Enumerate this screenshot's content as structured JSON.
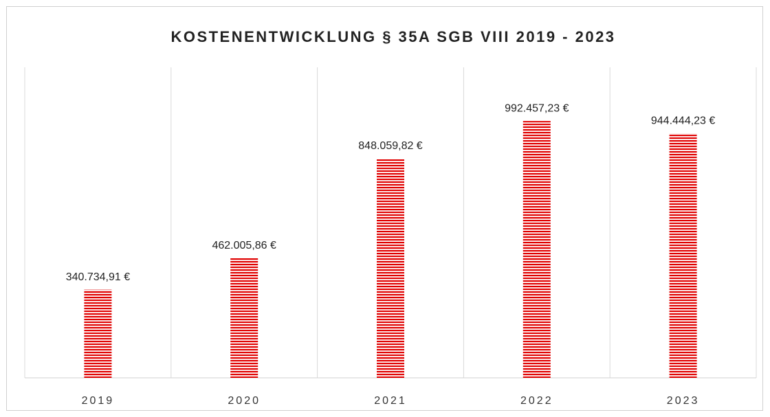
{
  "chart_data": {
    "type": "bar",
    "title": "KOSTENENTWICKLUNG § 35A SGB VIII 2019 - 2023",
    "categories": [
      "2019",
      "2020",
      "2021",
      "2022",
      "2023"
    ],
    "values": [
      340734.91,
      462005.86,
      848059.82,
      992457.23,
      944444.23
    ],
    "value_labels": [
      "340.734,91 €",
      "462.005,86 €",
      "848.059,82 €",
      "992.457,23 €",
      "944.444,23 €"
    ],
    "color": "#e00000",
    "ylim": [
      0,
      1200000
    ]
  }
}
